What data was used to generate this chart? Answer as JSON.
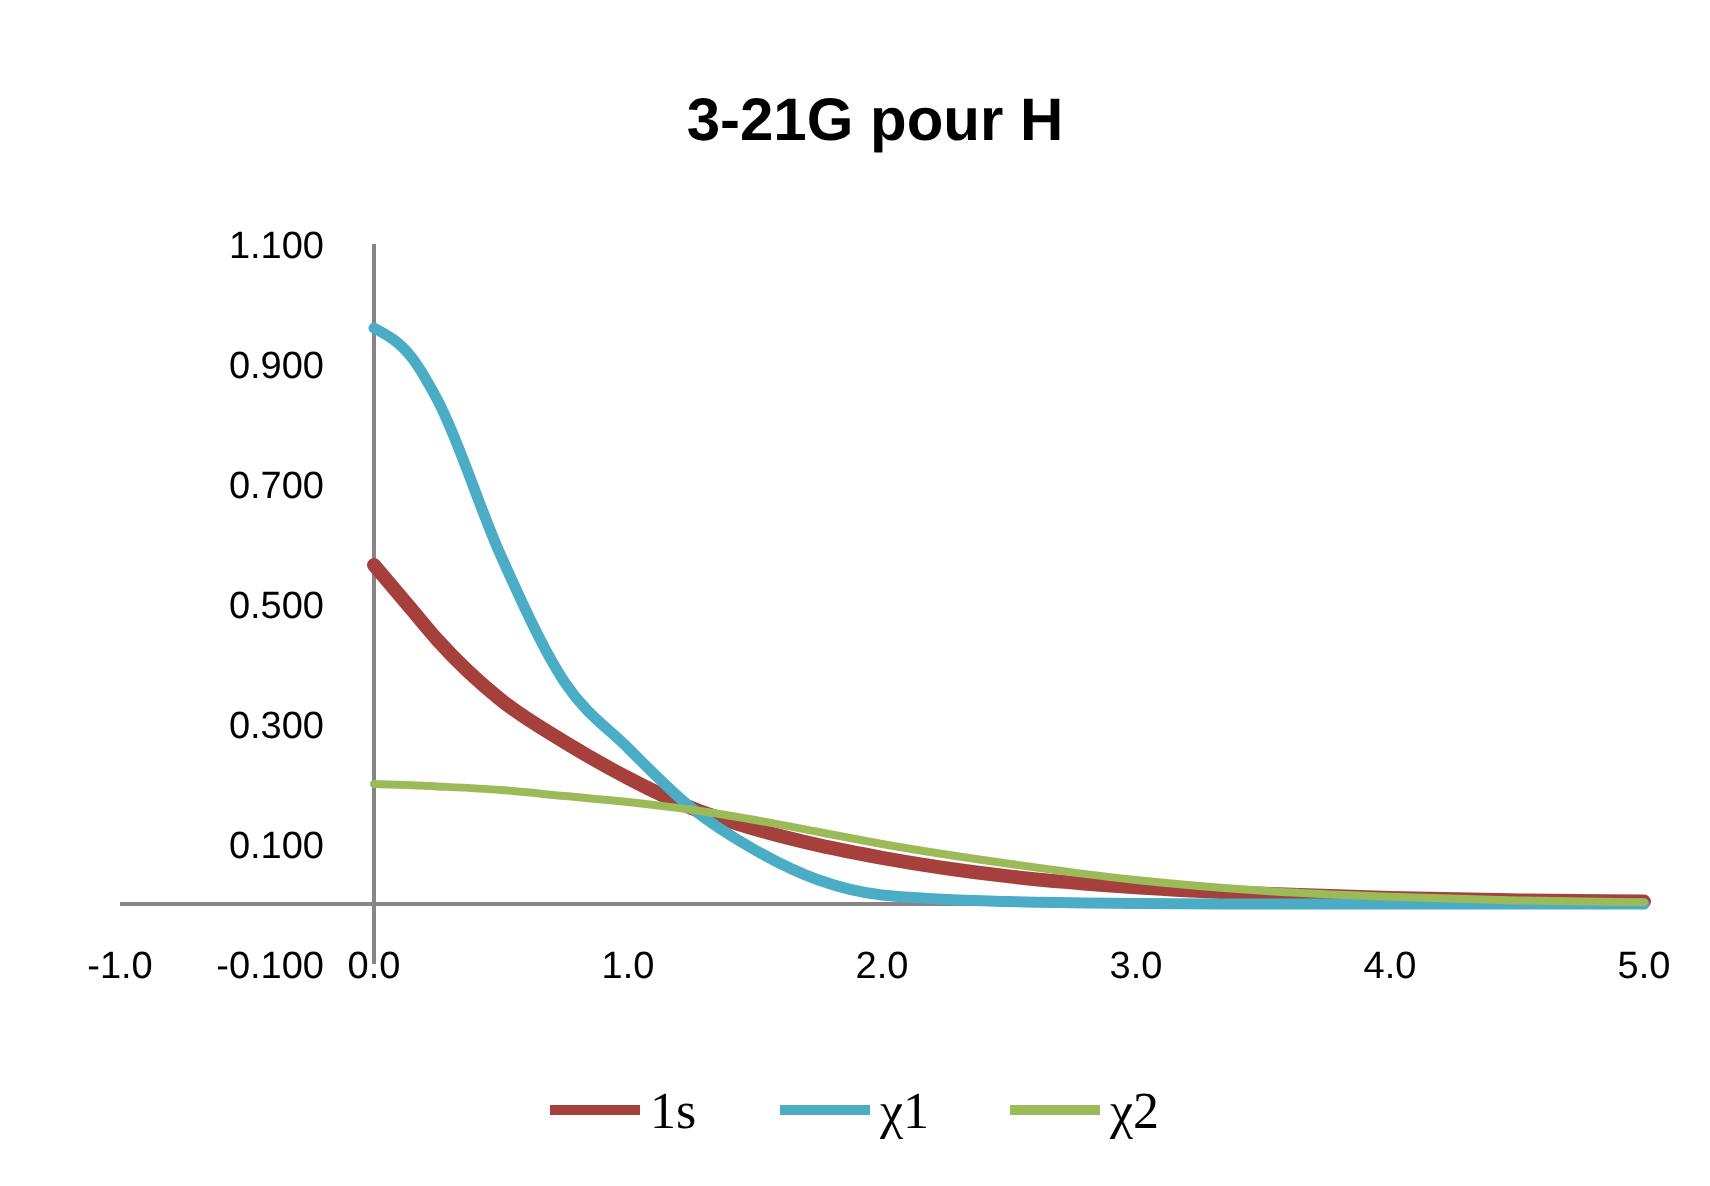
{
  "chart_data": {
    "type": "line",
    "title": "3-21G pour H",
    "xlim": [
      -1,
      5
    ],
    "xticks": [
      {
        "value": -1,
        "label": "-1.0"
      },
      {
        "value": 0,
        "label": "0.0"
      },
      {
        "value": 1,
        "label": "1.0"
      },
      {
        "value": 2,
        "label": "2.0"
      },
      {
        "value": 3,
        "label": "3.0"
      },
      {
        "value": 4,
        "label": "4.0"
      },
      {
        "value": 5,
        "label": "5.0"
      }
    ],
    "ylim": [
      -0.1,
      1.1
    ],
    "yticks": [
      {
        "value": -0.1,
        "label": "-0.100"
      },
      {
        "value": 0.1,
        "label": "0.100"
      },
      {
        "value": 0.3,
        "label": "0.300"
      },
      {
        "value": 0.5,
        "label": "0.500"
      },
      {
        "value": 0.7,
        "label": "0.700"
      },
      {
        "value": 0.9,
        "label": "0.900"
      },
      {
        "value": 1.1,
        "label": "1.100"
      }
    ],
    "x": [
      0,
      0.15,
      0.25,
      0.5,
      0.75,
      1,
      1.25,
      1.5,
      1.75,
      2,
      2.5,
      3,
      3.5,
      4,
      4.5,
      5
    ],
    "series": [
      {
        "name": "1s",
        "color": "#a5403c",
        "values": [
          0.565,
          0.49,
          0.44,
          0.34,
          0.27,
          0.21,
          0.16,
          0.125,
          0.098,
          0.077,
          0.046,
          0.028,
          0.017,
          0.01,
          0.006,
          0.004
        ]
      },
      {
        "name": "χ1",
        "color": "#4bacc6",
        "values": [
          0.96,
          0.91,
          0.84,
          0.58,
          0.37,
          0.26,
          0.16,
          0.09,
          0.04,
          0.015,
          0.004,
          0.001,
          0,
          0,
          0,
          0
        ]
      },
      {
        "name": "χ2",
        "color": "#9bbb59",
        "values": [
          0.2,
          0.198,
          0.196,
          0.19,
          0.18,
          0.17,
          0.157,
          0.14,
          0.12,
          0.1,
          0.067,
          0.04,
          0.022,
          0.012,
          0.006,
          0.003
        ]
      }
    ],
    "grid": false,
    "legend": "bottom",
    "marker": "none",
    "line_style": "solid"
  }
}
